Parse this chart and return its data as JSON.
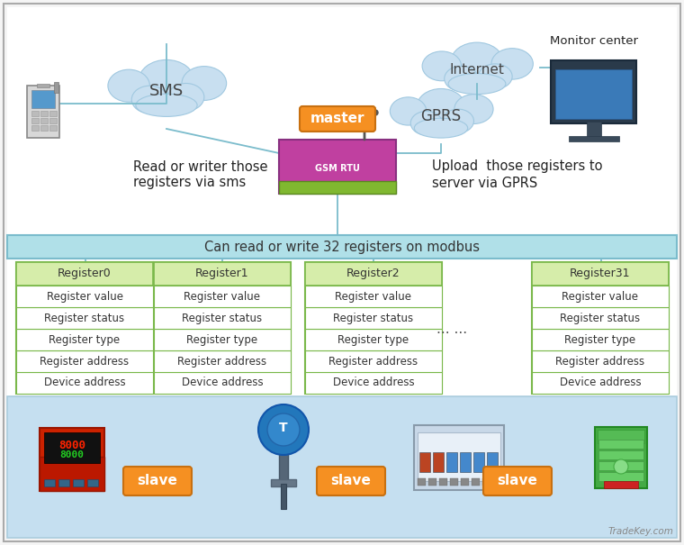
{
  "bg_color": "#f5f5f5",
  "top_bg": "#ffffff",
  "bottom_section_color": "#c5dff0",
  "modbus_bar_color": "#b0e0e8",
  "modbus_bar_border": "#7bbccc",
  "modbus_bar_text": "Can read or write 32 registers on modbus",
  "register_box_border": "#7ab84a",
  "register_header_bg": "#d6edaa",
  "register_names": [
    "Register0",
    "Register1",
    "Register2",
    "Register31"
  ],
  "register_fields": [
    "Device address",
    "Register address",
    "Register type",
    "Register status",
    "Register value"
  ],
  "master_label": "master",
  "master_bg": "#f59022",
  "slave_label": "slave",
  "slave_bg": "#f59022",
  "sms_label": "SMS",
  "gprs_label": "GPRS",
  "internet_label": "Internet",
  "monitor_label": "Monitor center",
  "left_text_line1": "Read or writer those",
  "left_text_line2": "registers via sms",
  "right_text_line1": "Upload  those registers to",
  "right_text_line2": "server via GPRS",
  "dots_label": "... ...",
  "watermark": "TradeKey.com",
  "line_color": "#7bbccc",
  "cloud_color": "#c8dff0",
  "cloud_edge": "#a0c8e0",
  "outer_border": "#aaaaaa"
}
